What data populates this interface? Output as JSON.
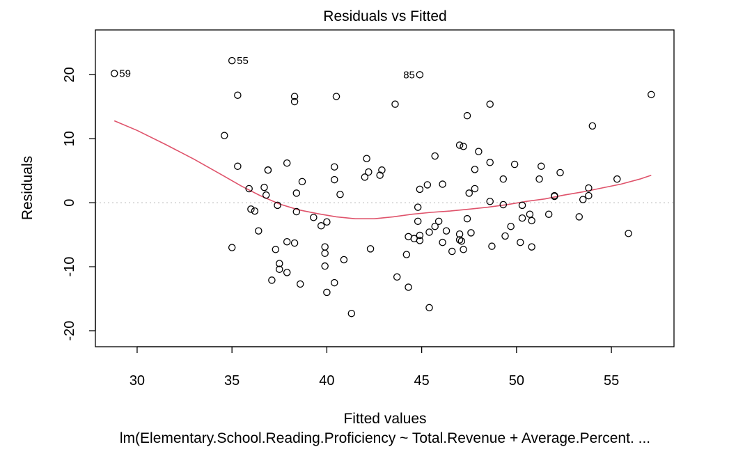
{
  "chart_data": {
    "type": "scatter",
    "title": "Residuals vs Fitted",
    "xlabel": "Fitted values",
    "ylabel": "Residuals",
    "subtitle": "lm(Elementary.School.Reading.Proficiency ~ Total.Revenue + Average.Percent. ...",
    "xlim": [
      27.8,
      58.3
    ],
    "ylim": [
      -22.5,
      27.0
    ],
    "xticks": [
      30,
      35,
      40,
      45,
      50,
      55
    ],
    "yticks": [
      -20,
      -10,
      0,
      10,
      20
    ],
    "reference_line_y": 0,
    "smooth_color": "#DF536B",
    "reference_line_color": "#BEBEBE",
    "labeled_points": [
      {
        "label": "59",
        "x": 28.8,
        "y": 20.2,
        "side": "right"
      },
      {
        "label": "55",
        "x": 35.0,
        "y": 22.2,
        "side": "right"
      },
      {
        "label": "85",
        "x": 44.9,
        "y": 20.0,
        "side": "left"
      }
    ],
    "points": [
      [
        35.3,
        16.8
      ],
      [
        38.3,
        16.6
      ],
      [
        38.3,
        15.8
      ],
      [
        40.5,
        16.6
      ],
      [
        43.6,
        15.4
      ],
      [
        48.6,
        15.4
      ],
      [
        47.4,
        13.6
      ],
      [
        57.1,
        16.9
      ],
      [
        54.0,
        12.0
      ],
      [
        34.6,
        10.5
      ],
      [
        47.0,
        9.0
      ],
      [
        47.2,
        8.8
      ],
      [
        48.0,
        8.0
      ],
      [
        42.1,
        6.9
      ],
      [
        45.7,
        7.3
      ],
      [
        48.6,
        6.3
      ],
      [
        49.9,
        6.0
      ],
      [
        35.3,
        5.7
      ],
      [
        36.9,
        5.1
      ],
      [
        36.9,
        5.1
      ],
      [
        37.9,
        6.2
      ],
      [
        40.4,
        5.6
      ],
      [
        42.2,
        4.8
      ],
      [
        42.9,
        5.1
      ],
      [
        42.0,
        4.0
      ],
      [
        42.8,
        4.3
      ],
      [
        47.8,
        5.2
      ],
      [
        51.3,
        5.7
      ],
      [
        52.3,
        4.7
      ],
      [
        51.2,
        3.7
      ],
      [
        49.3,
        3.7
      ],
      [
        55.3,
        3.7
      ],
      [
        36.7,
        2.4
      ],
      [
        35.9,
        2.2
      ],
      [
        38.7,
        3.3
      ],
      [
        40.4,
        3.6
      ],
      [
        45.3,
        2.8
      ],
      [
        44.9,
        2.1
      ],
      [
        46.1,
        2.9
      ],
      [
        47.8,
        2.2
      ],
      [
        47.5,
        1.5
      ],
      [
        53.8,
        2.3
      ],
      [
        36.8,
        1.2
      ],
      [
        38.4,
        1.5
      ],
      [
        40.7,
        1.3
      ],
      [
        52.0,
        1.1
      ],
      [
        52.0,
        1.0
      ],
      [
        53.8,
        1.1
      ],
      [
        53.5,
        0.5
      ],
      [
        48.6,
        0.2
      ],
      [
        49.3,
        -0.3
      ],
      [
        50.3,
        -0.4
      ],
      [
        37.4,
        -0.4
      ],
      [
        36.0,
        -1.0
      ],
      [
        36.2,
        -1.3
      ],
      [
        38.4,
        -1.4
      ],
      [
        44.8,
        -0.7
      ],
      [
        50.7,
        -1.8
      ],
      [
        51.7,
        -1.8
      ],
      [
        53.3,
        -2.2
      ],
      [
        50.3,
        -2.4
      ],
      [
        50.8,
        -2.8
      ],
      [
        39.3,
        -2.3
      ],
      [
        40.0,
        -3.0
      ],
      [
        39.7,
        -3.6
      ],
      [
        44.8,
        -2.9
      ],
      [
        45.4,
        -4.6
      ],
      [
        45.7,
        -3.7
      ],
      [
        45.9,
        -2.9
      ],
      [
        47.4,
        -2.5
      ],
      [
        49.7,
        -3.7
      ],
      [
        36.4,
        -4.4
      ],
      [
        44.3,
        -5.3
      ],
      [
        44.6,
        -5.6
      ],
      [
        44.9,
        -5.1
      ],
      [
        44.9,
        -5.9
      ],
      [
        46.3,
        -4.4
      ],
      [
        47.0,
        -4.9
      ],
      [
        47.6,
        -4.7
      ],
      [
        49.4,
        -5.2
      ],
      [
        50.2,
        -6.2
      ],
      [
        37.9,
        -6.1
      ],
      [
        38.3,
        -6.3
      ],
      [
        46.1,
        -6.2
      ],
      [
        47.0,
        -5.8
      ],
      [
        47.1,
        -6.0
      ],
      [
        48.7,
        -6.8
      ],
      [
        50.8,
        -6.9
      ],
      [
        55.9,
        -4.8
      ],
      [
        35.0,
        -7.0
      ],
      [
        37.3,
        -7.3
      ],
      [
        39.9,
        -6.9
      ],
      [
        39.9,
        -7.9
      ],
      [
        42.3,
        -7.2
      ],
      [
        46.6,
        -7.6
      ],
      [
        47.2,
        -7.3
      ],
      [
        40.9,
        -8.9
      ],
      [
        44.2,
        -8.1
      ],
      [
        37.5,
        -9.5
      ],
      [
        37.5,
        -10.4
      ],
      [
        39.9,
        -9.9
      ],
      [
        37.9,
        -10.9
      ],
      [
        37.1,
        -12.1
      ],
      [
        38.6,
        -12.7
      ],
      [
        40.4,
        -12.5
      ],
      [
        43.7,
        -11.6
      ],
      [
        44.3,
        -13.2
      ],
      [
        40.0,
        -14.0
      ],
      [
        45.4,
        -16.4
      ],
      [
        41.3,
        -17.3
      ]
    ],
    "smooth_curve": [
      [
        28.8,
        12.8
      ],
      [
        30.0,
        11.3
      ],
      [
        31.5,
        9.1
      ],
      [
        33.0,
        6.8
      ],
      [
        34.5,
        4.3
      ],
      [
        35.5,
        2.6
      ],
      [
        36.5,
        1.1
      ],
      [
        37.5,
        -0.2
      ],
      [
        38.5,
        -1.1
      ],
      [
        39.5,
        -1.7
      ],
      [
        40.5,
        -2.2
      ],
      [
        41.5,
        -2.5
      ],
      [
        42.5,
        -2.5
      ],
      [
        43.5,
        -2.2
      ],
      [
        44.5,
        -1.8
      ],
      [
        45.5,
        -1.5
      ],
      [
        46.5,
        -1.3
      ],
      [
        47.5,
        -1.0
      ],
      [
        48.5,
        -0.7
      ],
      [
        49.5,
        -0.3
      ],
      [
        50.5,
        0.2
      ],
      [
        51.5,
        0.6
      ],
      [
        52.5,
        1.2
      ],
      [
        53.5,
        1.7
      ],
      [
        54.5,
        2.3
      ],
      [
        55.5,
        2.9
      ],
      [
        56.5,
        3.7
      ],
      [
        57.1,
        4.3
      ]
    ]
  }
}
